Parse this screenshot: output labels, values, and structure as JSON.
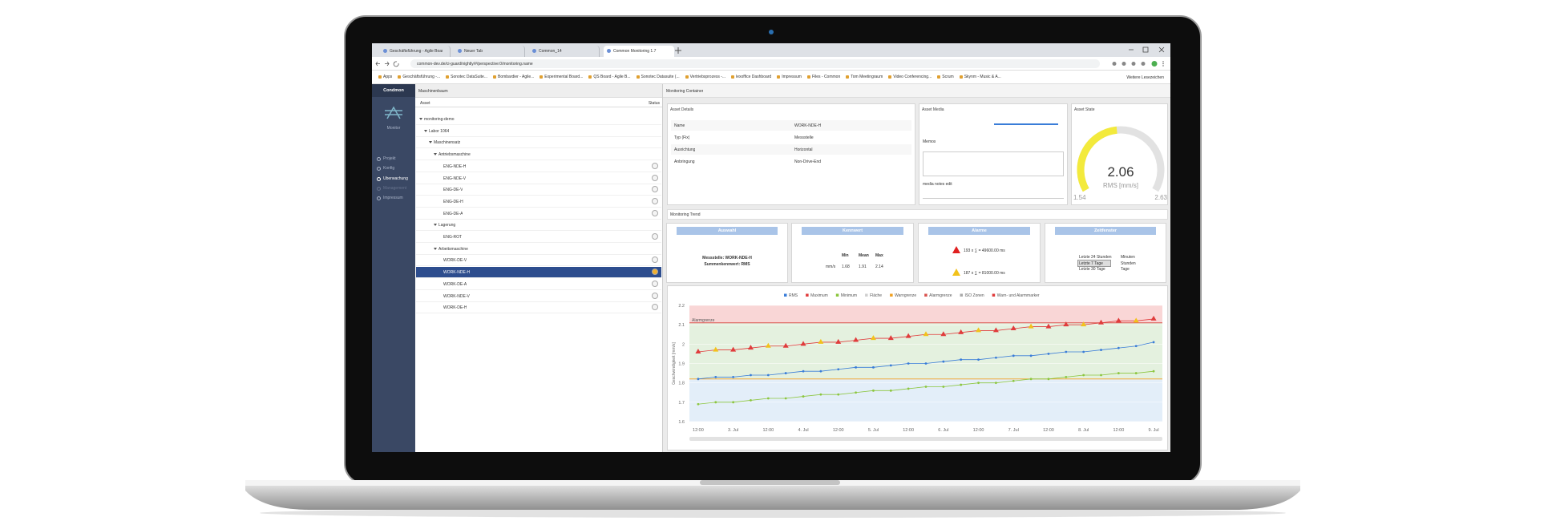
{
  "browser": {
    "tabs": [
      "Geschäftsführung - Agile Board",
      "Neuer Tab",
      "Common_14",
      "Common Monitoring 1.7"
    ],
    "url": "common-dev.de/ci-guard/nightly/#/perspective:0/monitoring.name",
    "bookmarks": [
      "Apps",
      "Geschäftsführung -...",
      "Sonotec DataSuite...",
      "Bombardier - Agile...",
      "Experimental Board...",
      "QS Board - Agile B...",
      "Sonotec Datasuite (...",
      "Vertriebsprozess -...",
      "lexoffice Dashboard",
      "Impressum",
      "Files - Common",
      "Tom Meetingraum",
      "Video Conferencing...",
      "Scrum",
      "Skynm - Music & A..."
    ],
    "more_bookmarks": "Weitere Lesezeichen"
  },
  "sidebar": {
    "title": "Condmon",
    "subtitle": "Monitor",
    "nav": [
      "Projekt",
      "Konfig",
      "Überwachung",
      "Management",
      "Impressum"
    ]
  },
  "tree": {
    "title": "Maschinenbaum",
    "col_asset": "Asset",
    "col_status": "Status",
    "items": [
      "monitoring-demo",
      "Labor 1064",
      "Maschinensatz",
      "Antriebsmaschine",
      "ENG-NDE-H",
      "ENG-NDE-V",
      "ENG-DE-V",
      "ENG-DE-H",
      "ENG-DE-A",
      "Lagerung",
      "ENG-ROT",
      "Arbeitsmaschine",
      "WORK-DE-V",
      "WORK-NDE-H",
      "WORK-DE-A",
      "WORK-NDE-V",
      "WORK-DE-H"
    ]
  },
  "container": {
    "title": "Monitoring Container"
  },
  "details": {
    "title": "Asset Details",
    "rows": [
      [
        "Name",
        "WORK-NDE-H"
      ],
      [
        "Typ (Fix)",
        "Messstelle"
      ],
      [
        "Ausrichtung",
        "Horizontal"
      ],
      [
        "Anbringung",
        "Non-Drive-End"
      ]
    ]
  },
  "media": {
    "title": "Asset Media",
    "memos": "Memos",
    "notes": "media notes edit"
  },
  "state": {
    "title": "Asset State",
    "value": 2.06,
    "unit": "RMS [mm/s]",
    "min": 1.54,
    "max": 2.63
  },
  "trend": {
    "title": "Monitoring Trend",
    "auswahl": {
      "title": "Auswahl",
      "lines": [
        "Messstelle: WORK-NDE-H",
        "Summenkennwert: RMS"
      ]
    },
    "kennwert": {
      "title": "Kennwert",
      "headers": [
        "Min",
        "Mean",
        "Max"
      ],
      "unit": "mm/s",
      "values": [
        1.68,
        1.91,
        2.14
      ]
    },
    "alarme": {
      "title": "Alarme",
      "items": [
        "193 x ∑ = 49600.00 ms",
        "187 x ∑ = 81000.00 ms"
      ]
    },
    "zeitfenster": {
      "title": "Zeitfenster",
      "rows": [
        [
          "Letzte 24 Stunden",
          "Minuten"
        ],
        [
          "Letzte 7 Tage",
          "Stunden"
        ],
        [
          "Letzte 30 Tage",
          "Tage"
        ]
      ]
    }
  },
  "chart_data": {
    "type": "line",
    "y_label": "Geschwindigkeit [mm/s]",
    "categories": [
      "12:00",
      null,
      "3. Jul",
      null,
      "12:00",
      null,
      "4. Jul",
      null,
      "12:00",
      null,
      "5. Jul",
      null,
      "12:00",
      null,
      "6. Jul",
      null,
      "12:00",
      null,
      "7. Jul",
      null,
      "12:00",
      null,
      "8. Jul",
      null,
      "12:00",
      null,
      "9. Jul"
    ],
    "series": [
      {
        "name": "RMS",
        "color": "#3a7dd8",
        "values": [
          1.82,
          1.83,
          1.83,
          1.84,
          1.84,
          1.85,
          1.86,
          1.86,
          1.87,
          1.88,
          1.88,
          1.89,
          1.9,
          1.9,
          1.91,
          1.92,
          1.92,
          1.93,
          1.94,
          1.94,
          1.95,
          1.96,
          1.96,
          1.97,
          1.98,
          1.99,
          2.01
        ]
      },
      {
        "name": "Maximum",
        "color": "#e03c3c",
        "values": [
          1.96,
          1.97,
          1.97,
          1.98,
          1.99,
          1.99,
          2.0,
          2.01,
          2.01,
          2.02,
          2.03,
          2.03,
          2.04,
          2.05,
          2.05,
          2.06,
          2.07,
          2.07,
          2.08,
          2.09,
          2.09,
          2.1,
          2.1,
          2.11,
          2.12,
          2.12,
          2.13
        ]
      },
      {
        "name": "Minimum",
        "color": "#8cc63f",
        "values": [
          1.69,
          1.7,
          1.7,
          1.71,
          1.72,
          1.72,
          1.73,
          1.74,
          1.74,
          1.75,
          1.76,
          1.76,
          1.77,
          1.78,
          1.78,
          1.79,
          1.8,
          1.8,
          1.81,
          1.82,
          1.82,
          1.83,
          1.84,
          1.84,
          1.85,
          1.85,
          1.86
        ]
      }
    ],
    "area_label": "Fläche",
    "limits": [
      {
        "name": "Warngrenze",
        "value": 1.82,
        "color": "#f0a020"
      },
      {
        "name": "Alarmgrenze",
        "value": 2.11,
        "color": "#d9534f"
      }
    ],
    "zones_label": "ISO Zonen",
    "markers_label": "Warn- und Alarmmarker",
    "ylim": [
      1.6,
      2.2
    ],
    "yticks": [
      1.6,
      1.7,
      1.8,
      1.9,
      2,
      2.1,
      2.2
    ],
    "grid": true
  }
}
